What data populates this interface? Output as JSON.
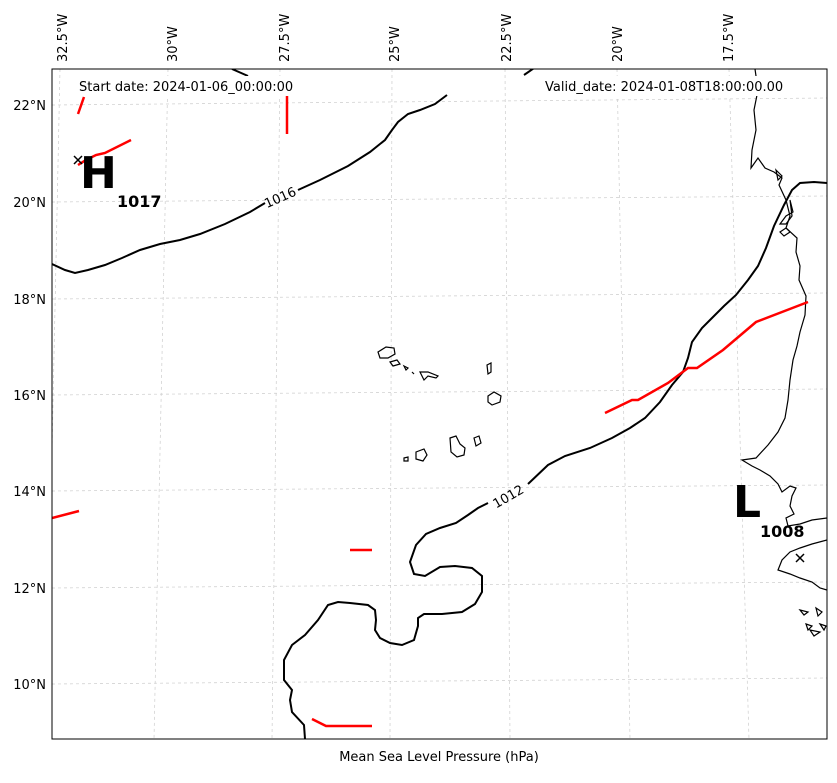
{
  "header": {
    "start_date": "Start date: 2024-01-06_00:00:00",
    "valid_date": "Valid_date: 2024-01-08T18:00:00.00"
  },
  "xlabel": "Mean Sea Level Pressure (hPa)",
  "lon_ticks": [
    "32.5°W",
    "30°W",
    "27.5°W",
    "25°W",
    "22.5°W",
    "20°W",
    "17.5°W"
  ],
  "lat_ticks": [
    "22°N",
    "20°N",
    "18°N",
    "16°N",
    "14°N",
    "12°N",
    "10°N"
  ],
  "contours": [
    {
      "value": "1016"
    },
    {
      "value": "1012"
    }
  ],
  "pressure_centers": [
    {
      "type": "high",
      "letter": "H",
      "value": "1017"
    },
    {
      "type": "low",
      "letter": "L",
      "value": "1008"
    }
  ],
  "colors": {
    "isobar": "#000000",
    "front": "#ff0000",
    "grid": "#cccccc",
    "coast": "#000000"
  },
  "grid": true
}
